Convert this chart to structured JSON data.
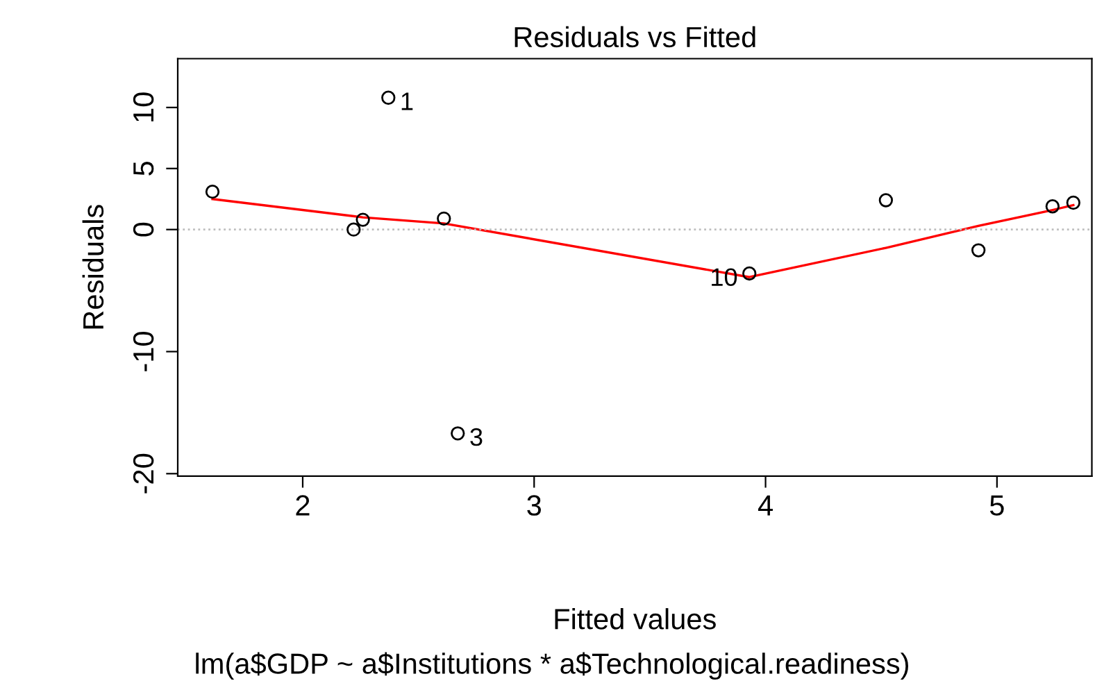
{
  "chart_data": {
    "type": "scatter",
    "title": "Residuals vs Fitted",
    "xlabel": "Fitted values",
    "ylabel": "Residuals",
    "xlim": [
      1.46,
      5.41
    ],
    "ylim": [
      -20.2,
      14.0
    ],
    "xticks": [
      2,
      3,
      4,
      5
    ],
    "yticks": [
      -20,
      -10,
      0,
      5,
      10
    ],
    "grid": false,
    "marker": "circle",
    "series": [
      {
        "color": "#000000",
        "x": [
          1.61,
          2.22,
          2.26,
          2.37,
          2.61,
          2.67,
          3.93,
          4.52,
          4.92,
          5.24,
          5.33
        ],
        "values": [
          3.1,
          0.0,
          0.8,
          10.8,
          0.9,
          -16.7,
          -3.6,
          2.4,
          -1.7,
          1.9,
          2.2
        ]
      },
      {
        "type": "line",
        "color": "#ff0000",
        "marker": "none",
        "x": [
          1.61,
          2.26,
          2.61,
          3.93,
          4.52,
          4.92,
          5.24,
          5.33
        ],
        "values": [
          2.5,
          1.0,
          0.5,
          -3.9,
          -1.5,
          0.3,
          1.6,
          2.0
        ]
      }
    ],
    "ref_lines": [
      {
        "axis": "y",
        "value": 0,
        "color": "#bebebe",
        "line_style": "dotted"
      }
    ],
    "annotations": [
      {
        "text": "1",
        "x": 2.37,
        "y": 10.8
      },
      {
        "text": "3",
        "x": 2.67,
        "y": -16.7
      },
      {
        "text": "10",
        "x": 3.93,
        "y": -3.6
      },
      "lm(a$GDP ~ a$Institutions * a$Technological.readiness)"
    ]
  }
}
